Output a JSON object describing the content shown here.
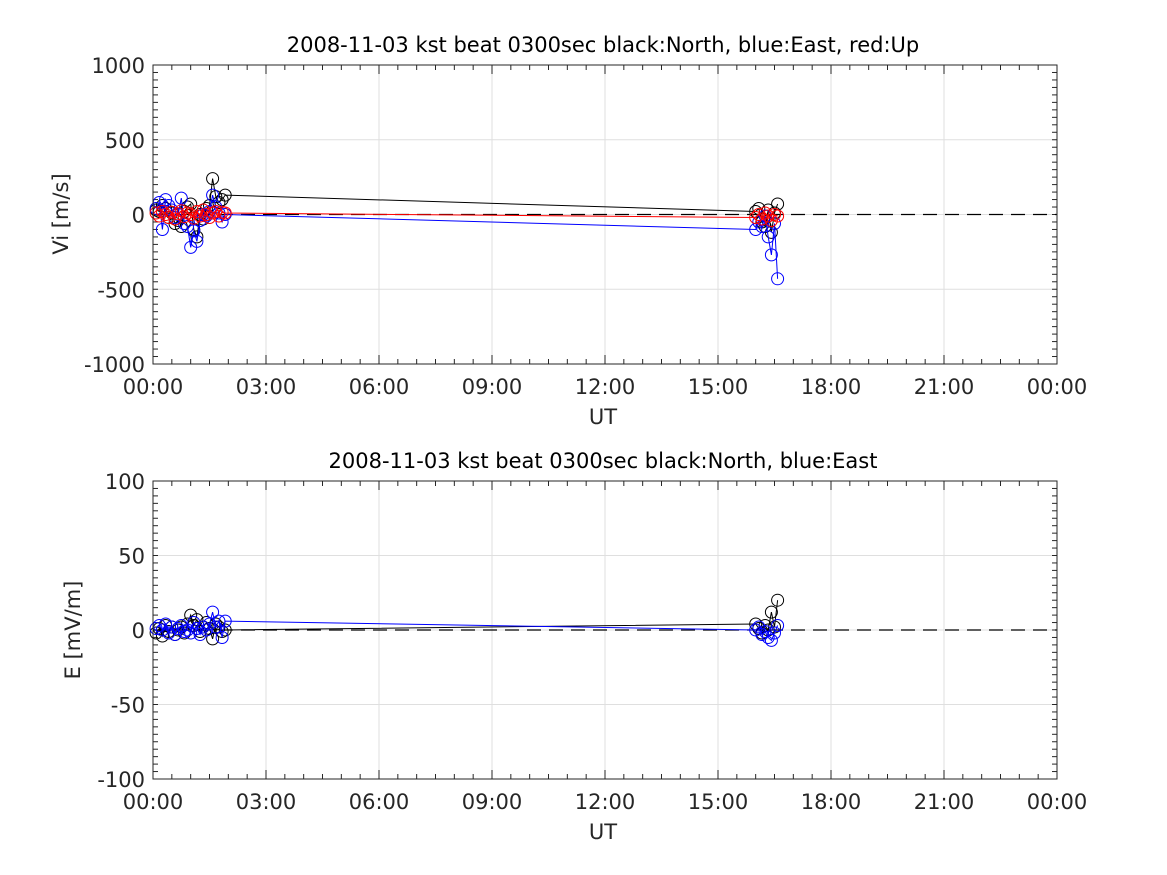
{
  "chart_data": [
    {
      "type": "line",
      "title": "2008-11-03 kst beat 0300sec black:North, blue:East, red:Up",
      "xlabel": "UT",
      "ylabel": "Vi [m/s]",
      "ylim": [
        -1000,
        1000
      ],
      "xlim": [
        "00:00",
        "24:00"
      ],
      "yticks": [
        "-1000",
        "-500",
        "0",
        "500",
        "1000"
      ],
      "xticks": [
        "00:00",
        "03:00",
        "06:00",
        "09:00",
        "12:00",
        "15:00",
        "18:00",
        "21:00",
        "00:00"
      ],
      "grid": true,
      "reference_line": {
        "y": 0,
        "style": "dashed"
      },
      "series": [
        {
          "name": "North",
          "color": "#000000",
          "x": [
            "00:05",
            "00:10",
            "00:15",
            "00:20",
            "00:25",
            "00:30",
            "00:35",
            "00:40",
            "00:45",
            "00:50",
            "00:55",
            "01:00",
            "01:05",
            "01:10",
            "01:15",
            "01:20",
            "01:25",
            "01:30",
            "01:35",
            "01:40",
            "01:45",
            "01:50",
            "01:55",
            "16:00",
            "16:05",
            "16:10",
            "16:15",
            "16:20",
            "16:25",
            "16:30",
            "16:35"
          ],
          "y": [
            30,
            20,
            60,
            40,
            -20,
            10,
            -60,
            -40,
            -80,
            20,
            50,
            70,
            -100,
            -150,
            0,
            -30,
            40,
            60,
            240,
            120,
            80,
            100,
            130,
            20,
            40,
            -50,
            -80,
            30,
            -120,
            10,
            70
          ]
        },
        {
          "name": "East",
          "color": "#0000ff",
          "x": [
            "00:05",
            "00:10",
            "00:15",
            "00:20",
            "00:25",
            "00:30",
            "00:35",
            "00:40",
            "00:45",
            "00:50",
            "00:55",
            "01:00",
            "01:05",
            "01:10",
            "01:15",
            "01:20",
            "01:25",
            "01:30",
            "01:35",
            "01:40",
            "01:45",
            "01:50",
            "01:55",
            "16:00",
            "16:05",
            "16:10",
            "16:15",
            "16:20",
            "16:25",
            "16:30",
            "16:35"
          ],
          "y": [
            40,
            80,
            -100,
            100,
            60,
            30,
            -20,
            0,
            110,
            -60,
            -80,
            -220,
            -110,
            -180,
            -40,
            0,
            -10,
            20,
            130,
            50,
            10,
            -50,
            0,
            -100,
            -50,
            -80,
            -10,
            -150,
            -270,
            -60,
            -430
          ]
        },
        {
          "name": "Up",
          "color": "#ff0000",
          "x": [
            "00:05",
            "00:10",
            "00:15",
            "00:20",
            "00:25",
            "00:30",
            "00:35",
            "00:40",
            "00:45",
            "00:50",
            "00:55",
            "01:00",
            "01:05",
            "01:10",
            "01:15",
            "01:20",
            "01:25",
            "01:30",
            "01:35",
            "01:40",
            "01:45",
            "01:50",
            "01:55",
            "16:00",
            "16:05",
            "16:10",
            "16:15",
            "16:20",
            "16:25",
            "16:30",
            "16:35"
          ],
          "y": [
            10,
            -10,
            20,
            0,
            -20,
            15,
            -30,
            5,
            25,
            -15,
            10,
            0,
            -25,
            20,
            -10,
            30,
            0,
            -20,
            10,
            20,
            -10,
            15,
            10,
            -20,
            0,
            -30,
            10,
            -10,
            -40,
            0,
            -10
          ]
        }
      ]
    },
    {
      "type": "line",
      "title": "2008-11-03 kst beat 0300sec black:North, blue:East",
      "xlabel": "UT",
      "ylabel": "E [mV/m]",
      "ylim": [
        -100,
        100
      ],
      "xlim": [
        "00:00",
        "24:00"
      ],
      "yticks": [
        "-100",
        "-50",
        "0",
        "50",
        "100"
      ],
      "xticks": [
        "00:00",
        "03:00",
        "06:00",
        "09:00",
        "12:00",
        "15:00",
        "18:00",
        "21:00",
        "00:00"
      ],
      "grid": true,
      "reference_line": {
        "y": 0,
        "style": "dashed"
      },
      "series": [
        {
          "name": "North",
          "color": "#000000",
          "x": [
            "00:05",
            "00:10",
            "00:15",
            "00:20",
            "00:25",
            "00:30",
            "00:35",
            "00:40",
            "00:45",
            "00:50",
            "00:55",
            "01:00",
            "01:05",
            "01:10",
            "01:15",
            "01:20",
            "01:25",
            "01:30",
            "01:35",
            "01:40",
            "01:45",
            "01:50",
            "01:55",
            "16:00",
            "16:05",
            "16:10",
            "16:15",
            "16:20",
            "16:25",
            "16:30",
            "16:35"
          ],
          "y": [
            -2,
            1,
            -4,
            3,
            -1,
            2,
            -3,
            0,
            2,
            -2,
            4,
            10,
            3,
            7,
            -1,
            2,
            5,
            1,
            -6,
            4,
            2,
            -1,
            0,
            4,
            1,
            -2,
            3,
            0,
            12,
            2,
            20
          ]
        },
        {
          "name": "East",
          "color": "#0000ff",
          "x": [
            "00:05",
            "00:10",
            "00:15",
            "00:20",
            "00:25",
            "00:30",
            "00:35",
            "00:40",
            "00:45",
            "00:50",
            "00:55",
            "01:00",
            "01:05",
            "01:10",
            "01:15",
            "01:20",
            "01:25",
            "01:30",
            "01:35",
            "01:40",
            "01:45",
            "01:50",
            "01:55",
            "16:00",
            "16:05",
            "16:10",
            "16:15",
            "16:20",
            "16:25",
            "16:30",
            "16:35"
          ],
          "y": [
            1,
            3,
            0,
            4,
            -2,
            2,
            -3,
            1,
            3,
            -1,
            0,
            -2,
            5,
            1,
            -3,
            2,
            0,
            4,
            12,
            2,
            6,
            -5,
            6,
            0,
            2,
            -3,
            -1,
            -5,
            -7,
            -2,
            3
          ]
        }
      ]
    }
  ]
}
